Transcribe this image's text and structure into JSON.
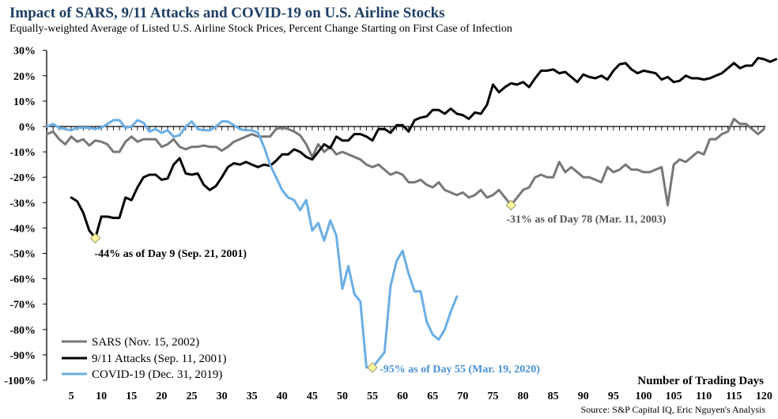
{
  "header": {
    "title": "Impact of SARS, 9/11 Attacks and COVID-19 on U.S. Airline Stocks",
    "subtitle": "Equally-weighted Average of Listed U.S. Airline Stock Prices, Percent Change Starting on First Case of Infection"
  },
  "source": "Source: S&P Capital IQ, Eric Nguyen's Analysis",
  "chart_data": {
    "type": "line",
    "title": "Impact of SARS, 9/11 Attacks and COVID-19 on U.S. Airline Stocks",
    "subtitle": "Equally-weighted Average of Listed U.S. Airline Stock Prices, Percent Change Starting on First Case of Infection",
    "xlabel": "Number of Trading Days",
    "ylabel": "",
    "xlim": [
      1,
      120
    ],
    "ylim": [
      -100,
      30
    ],
    "x_ticks": [
      5,
      10,
      15,
      20,
      25,
      30,
      35,
      40,
      45,
      50,
      55,
      60,
      65,
      70,
      75,
      80,
      85,
      90,
      95,
      100,
      105,
      110,
      115,
      120
    ],
    "y_ticks": [
      30,
      20,
      10,
      0,
      -10,
      -20,
      -30,
      -40,
      -50,
      -60,
      -70,
      -80,
      -90,
      -100
    ],
    "y_tick_labels": [
      "30%",
      "20%",
      "10%",
      "0%",
      "-10%",
      "-20%",
      "-30%",
      "-40%",
      "-50%",
      "-60%",
      "-70%",
      "-80%",
      "-90%",
      "-100%"
    ],
    "grid": false,
    "legend_position": "bottom-left",
    "series": [
      {
        "name": "SARS (Nov. 15, 2002)",
        "color": "#777777",
        "start_day": 1,
        "values": [
          -3,
          -2,
          -5,
          -7,
          -4,
          -6,
          -5,
          -7.5,
          -5.5,
          -6,
          -7,
          -10,
          -10,
          -6,
          -4,
          -6,
          -5,
          -5,
          -5,
          -8,
          -7,
          -5,
          -8,
          -9,
          -8,
          -8,
          -7.5,
          -8,
          -8,
          -9.5,
          -8,
          -6,
          -5,
          -4,
          -3,
          -4,
          -4,
          -4,
          -1,
          -0.5,
          -1,
          -2,
          -3.5,
          -7,
          -12,
          -7,
          -10,
          -8,
          -11,
          -10,
          -11,
          -12,
          -13,
          -15,
          -16,
          -15,
          -17,
          -19,
          -18,
          -19,
          -22,
          -22,
          -21,
          -23,
          -24,
          -22,
          -25,
          -26,
          -27,
          -26,
          -28,
          -27,
          -25,
          -28,
          -27,
          -25,
          -28,
          -31,
          -28,
          -25,
          -24,
          -20,
          -19,
          -20,
          -20,
          -14,
          -18,
          -16,
          -18,
          -20,
          -20,
          -21,
          -22,
          -16,
          -18,
          -17,
          -15,
          -17,
          -17,
          -18,
          -18,
          -17,
          -16,
          -31,
          -15,
          -13,
          -14,
          -12,
          -10,
          -11,
          -5,
          -5,
          -3,
          -2,
          3,
          1,
          1,
          -1,
          -3,
          -1
        ],
        "annotation": {
          "day": 78,
          "value": -31,
          "text": "-31% as of Day 78 (Mar. 11, 2003)"
        }
      },
      {
        "name": "9/11 Attacks (Sep. 11, 2001)",
        "color": "#000000",
        "start_day": 5,
        "values": [
          -28,
          -29.5,
          -34,
          -41,
          -44,
          -35.5,
          -35.5,
          -36,
          -36,
          -28,
          -29,
          -24,
          -20,
          -19,
          -19,
          -21,
          -20.5,
          -15,
          -12.5,
          -18.5,
          -19,
          -18.5,
          -23,
          -25,
          -23.5,
          -20,
          -16,
          -14.5,
          -15,
          -14,
          -15,
          -16,
          -15,
          -15.5,
          -13.5,
          -11,
          -11,
          -9,
          -10,
          -12,
          -13,
          -10,
          -7,
          -8.5,
          -4,
          -5.5,
          -5.5,
          -3,
          -3,
          -4,
          -5.5,
          -1,
          -1,
          -2.5,
          0.5,
          0.5,
          -2,
          2.5,
          3.5,
          4,
          6.5,
          6.5,
          5,
          7,
          5,
          4.5,
          3,
          5.5,
          5,
          8.5,
          16.5,
          13.5,
          15.5,
          17,
          16.5,
          17.5,
          15.5,
          19,
          22,
          22,
          22.5,
          21,
          21.5,
          19.5,
          17.5,
          20.5,
          19.5,
          19,
          20,
          18.5,
          22,
          24.5,
          25,
          22.5,
          21,
          22,
          21.5,
          21,
          18.5,
          19.5,
          17.5,
          18,
          20,
          19,
          19,
          18.5,
          19,
          20,
          21,
          23,
          25,
          23,
          24,
          24,
          27,
          26.5,
          25.5,
          26.5
        ]
      },
      {
        "name": "COVID-19 (Dec. 31, 2019)",
        "color": "#6aaee6",
        "start_day": 1,
        "values": [
          0,
          1,
          -0.5,
          -1,
          -1.5,
          -0.5,
          -0.5,
          -0.5,
          -1,
          -0.5,
          1,
          2.5,
          2.5,
          -0.5,
          0,
          2.5,
          1.5,
          -2,
          -1,
          -2.5,
          -1.5,
          -4,
          -3.5,
          0,
          2,
          -1,
          -1.5,
          -1.5,
          0,
          2,
          2,
          0.5,
          -1,
          -1.5,
          -1.5,
          -2.5,
          -8,
          -15,
          -20,
          -25,
          -28,
          -29,
          -33,
          -29,
          -41,
          -38,
          -45,
          -37,
          -43,
          -64,
          -55,
          -66,
          -69,
          -95,
          -95,
          -92,
          -89,
          -63,
          -53,
          -49,
          -58,
          -65,
          -65,
          -77,
          -82,
          -84,
          -80,
          -73,
          -67
        ],
        "annotation": {
          "day": 55,
          "value": -95,
          "text": "-95% as of Day 55 (Mar. 19, 2020)"
        }
      }
    ],
    "annotations": [
      {
        "series": "9/11 Attacks (Sep. 11, 2001)",
        "day": 9,
        "value": -44,
        "text": "-44% as of Day 9 (Sep. 21, 2001)"
      },
      {
        "series": "SARS (Nov. 15, 2002)",
        "day": 78,
        "value": -31,
        "text": "-31% as of Day 78 (Mar. 11, 2003)"
      },
      {
        "series": "COVID-19 (Dec. 31, 2019)",
        "day": 55,
        "value": -95,
        "text": "-95% as of Day 55 (Mar. 19, 2020)"
      }
    ],
    "marker_color": "#fff59d"
  }
}
